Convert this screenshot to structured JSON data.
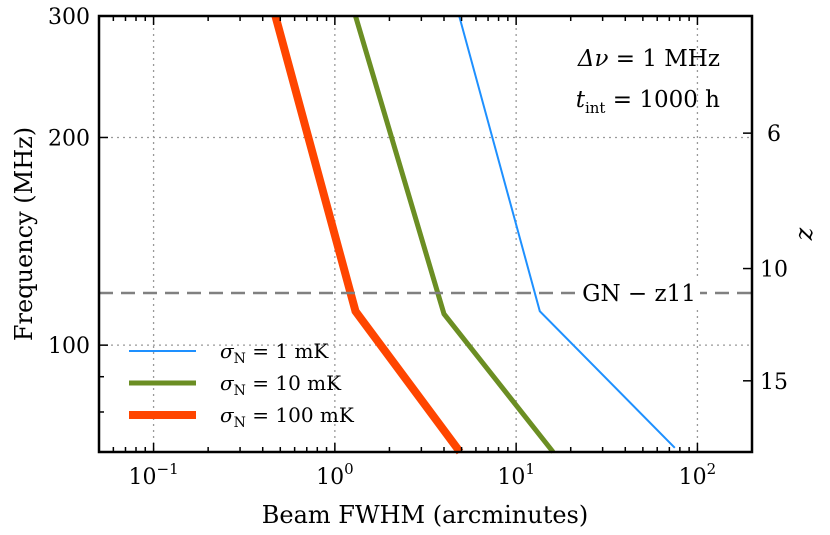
{
  "chart_data": {
    "type": "line",
    "x_axis": {
      "label": "Beam FWHM (arcminutes)",
      "scale": "log",
      "range": [
        0.05,
        200
      ],
      "ticks": [
        {
          "value": 0.1,
          "base": "10",
          "exp": "−1"
        },
        {
          "value": 1,
          "base": "10",
          "exp": "0"
        },
        {
          "value": 10,
          "base": "10",
          "exp": "1"
        },
        {
          "value": 100,
          "base": "10",
          "exp": "2"
        }
      ]
    },
    "y_axis": {
      "label": "Frequency (MHz)",
      "scale": "log",
      "range": [
        70,
        300
      ],
      "ticks": [
        {
          "value": 100,
          "label": "100"
        },
        {
          "value": 200,
          "label": "200"
        },
        {
          "value": 300,
          "label": "300"
        }
      ]
    },
    "y2_axis": {
      "label": "z",
      "ticks": [
        {
          "z": 6,
          "label": "6"
        },
        {
          "z": 10,
          "label": "10"
        },
        {
          "z": 15,
          "label": "15"
        }
      ]
    },
    "grid": true,
    "legend": {
      "placement": "lower-left",
      "entries": [
        {
          "sym": "σ",
          "sub": "N",
          "rest": " = 1 mK"
        },
        {
          "sym": "σ",
          "sub": "N",
          "rest": " = 10 mK"
        },
        {
          "sym": "σ",
          "sub": "N",
          "rest": " = 100 mK"
        }
      ]
    },
    "annotations": {
      "bandwidth": {
        "sym": "Δν",
        "rest": " = 1 MHz"
      },
      "integration": {
        "sym": "t",
        "sub": "int",
        "rest": " = 1000 h"
      }
    },
    "reference_line": {
      "label": "GN − z11",
      "frequency": 119.0
    },
    "series": [
      {
        "color": "#1E90FF",
        "width": 2,
        "points": [
          {
            "x": 4.85,
            "y": 300
          },
          {
            "x": 13.5,
            "y": 112
          },
          {
            "x": 75,
            "y": 71
          }
        ]
      },
      {
        "color": "#6B8E23",
        "width": 5,
        "points": [
          {
            "x": 1.3,
            "y": 300
          },
          {
            "x": 4.0,
            "y": 111
          },
          {
            "x": 16,
            "y": 70
          }
        ]
      },
      {
        "color": "#FF4500",
        "width": 8,
        "points": [
          {
            "x": 0.47,
            "y": 300
          },
          {
            "x": 1.3,
            "y": 112
          },
          {
            "x": 4.9,
            "y": 70
          }
        ]
      }
    ]
  }
}
